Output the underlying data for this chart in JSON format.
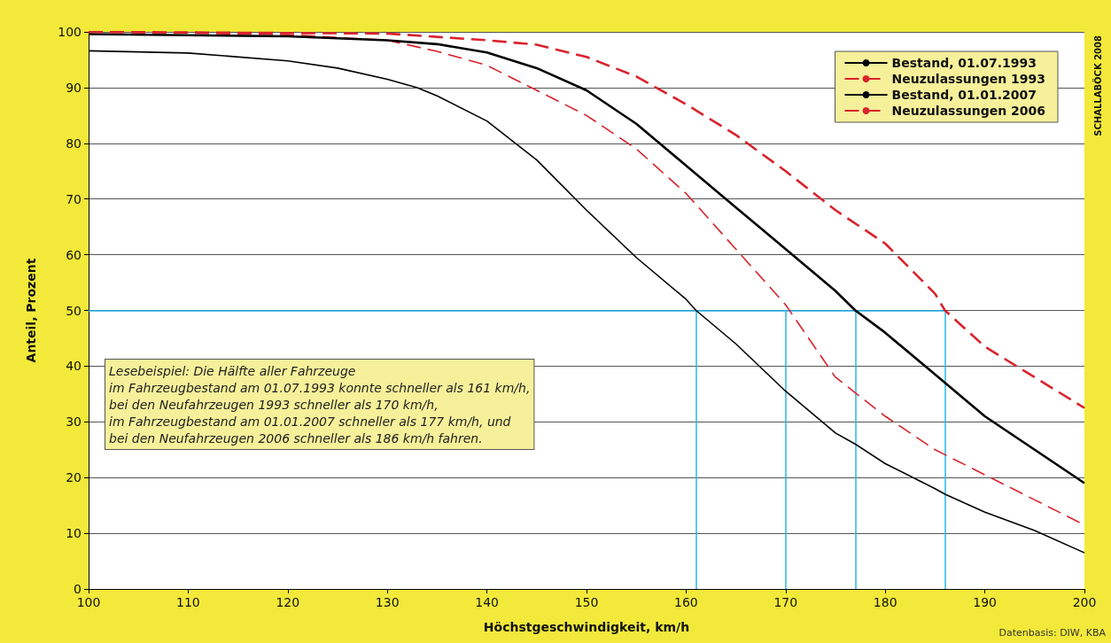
{
  "chart_data": {
    "type": "line",
    "xlabel": "Höchstgeschwindigkeit, km/h",
    "ylabel": "Anteil, Prozent",
    "xlim": [
      100,
      200
    ],
    "xticks": [
      100,
      110,
      120,
      130,
      140,
      150,
      160,
      170,
      180,
      190,
      200
    ],
    "ylim": [
      0,
      100
    ],
    "yticks": [
      0,
      10,
      20,
      30,
      40,
      50,
      60,
      70,
      80,
      90,
      100
    ],
    "grid": "y",
    "legend": "top right",
    "marker": "none",
    "series": [
      {
        "name": "Bestand, 01.07.1993",
        "color": "#000000",
        "line_style": "solid",
        "x": [
          100,
          110,
          120,
          125,
          130,
          133,
          135,
          140,
          145,
          150,
          155,
          160,
          161,
          165,
          170,
          175,
          177,
          180,
          185,
          186,
          190,
          195,
          200
        ],
        "values": [
          96.6,
          96.2,
          94.8,
          93.5,
          91.5,
          90,
          88.5,
          84,
          77,
          68,
          59.5,
          52,
          50,
          44,
          35.5,
          28,
          26,
          22.5,
          18,
          17,
          13.8,
          10.5,
          6.5
        ]
      },
      {
        "name": "Neuzulassungen 1993",
        "color": "#d9232d",
        "line_style": "dashed",
        "x": [
          100,
          120,
          130,
          135,
          140,
          145,
          150,
          155,
          160,
          165,
          170,
          175,
          180,
          185,
          190,
          195,
          200
        ],
        "values": [
          100,
          99.5,
          98.5,
          96.5,
          94,
          89.5,
          85,
          79,
          71,
          61,
          51,
          38,
          31,
          25,
          20.5,
          16,
          11.5
        ]
      },
      {
        "name": "Bestand, 01.01.2007",
        "color": "#000000",
        "line_style": "solid",
        "x": [
          100,
          120,
          130,
          135,
          140,
          145,
          150,
          155,
          160,
          165,
          170,
          175,
          177,
          180,
          185,
          190,
          195,
          200
        ],
        "values": [
          99.6,
          99.2,
          98.5,
          97.8,
          96.3,
          93.5,
          89.5,
          83.5,
          76,
          68.5,
          61,
          53.5,
          50,
          46,
          38.5,
          31,
          25,
          19
        ]
      },
      {
        "name": "Neuzulassungen 2006",
        "color": "#d9232d",
        "line_style": "dashed",
        "x": [
          100,
          130,
          140,
          145,
          150,
          155,
          160,
          165,
          170,
          175,
          180,
          185,
          186,
          190,
          195,
          200
        ],
        "values": [
          100,
          99.7,
          98.5,
          97.7,
          95.5,
          92,
          87,
          81.5,
          75,
          68,
          62,
          53,
          50,
          43.5,
          38,
          32.5
        ]
      }
    ],
    "ref_lines": [
      {
        "axis": "y",
        "value": 50,
        "color": "#29b6e8"
      },
      {
        "axis": "x",
        "value": 161,
        "color": "#29b6e8"
      },
      {
        "axis": "x",
        "value": 170,
        "color": "#29b6e8"
      },
      {
        "axis": "x",
        "value": 177,
        "color": "#29b6e8"
      },
      {
        "axis": "x",
        "value": 186,
        "color": "#29b6e8"
      }
    ],
    "annotations": [
      "Lesebeispiel: Die Hälfte aller Fahrzeuge\nim Fahrzeugbestand am 01.07.1993 konnte schneller als 161 km/h,\nbei den Neufahrzeugen 1993 schneller als 170 km/h,\nim Fahrzeugbestand am 01.01.2007 schneller als 177 km/h, und\nbei den Neufahrzeugen 2006 schneller als 186 km/h fahren.",
      "SCHALLABÖCK 2008",
      "Datenbasis: DIW, KBA"
    ]
  }
}
